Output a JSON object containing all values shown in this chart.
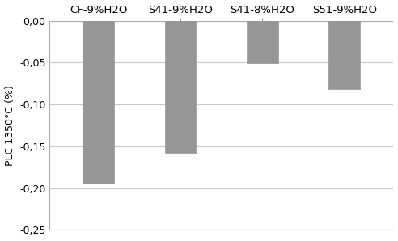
{
  "categories": [
    "CF-9%H2O",
    "S41-9%H2O",
    "S41-8%H2O",
    "S51-9%H2O"
  ],
  "values": [
    -0.195,
    -0.158,
    -0.051,
    -0.082
  ],
  "bar_color": "#969696",
  "bar_edge_color": "#969696",
  "ylabel": "PLC 1350°C (%)",
  "ylim": [
    -0.25,
    0.0
  ],
  "yticks": [
    0.0,
    -0.05,
    -0.1,
    -0.15,
    -0.2,
    -0.25
  ],
  "ytick_labels": [
    "0,00",
    "-0,05",
    "-0,10",
    "-0,15",
    "-0,20",
    "-0,25"
  ],
  "background_color": "#ffffff",
  "grid_color": "#c8c8c8",
  "bar_width": 0.38,
  "tick_fontsize": 9,
  "ylabel_fontsize": 9,
  "cat_fontsize": 9.5
}
